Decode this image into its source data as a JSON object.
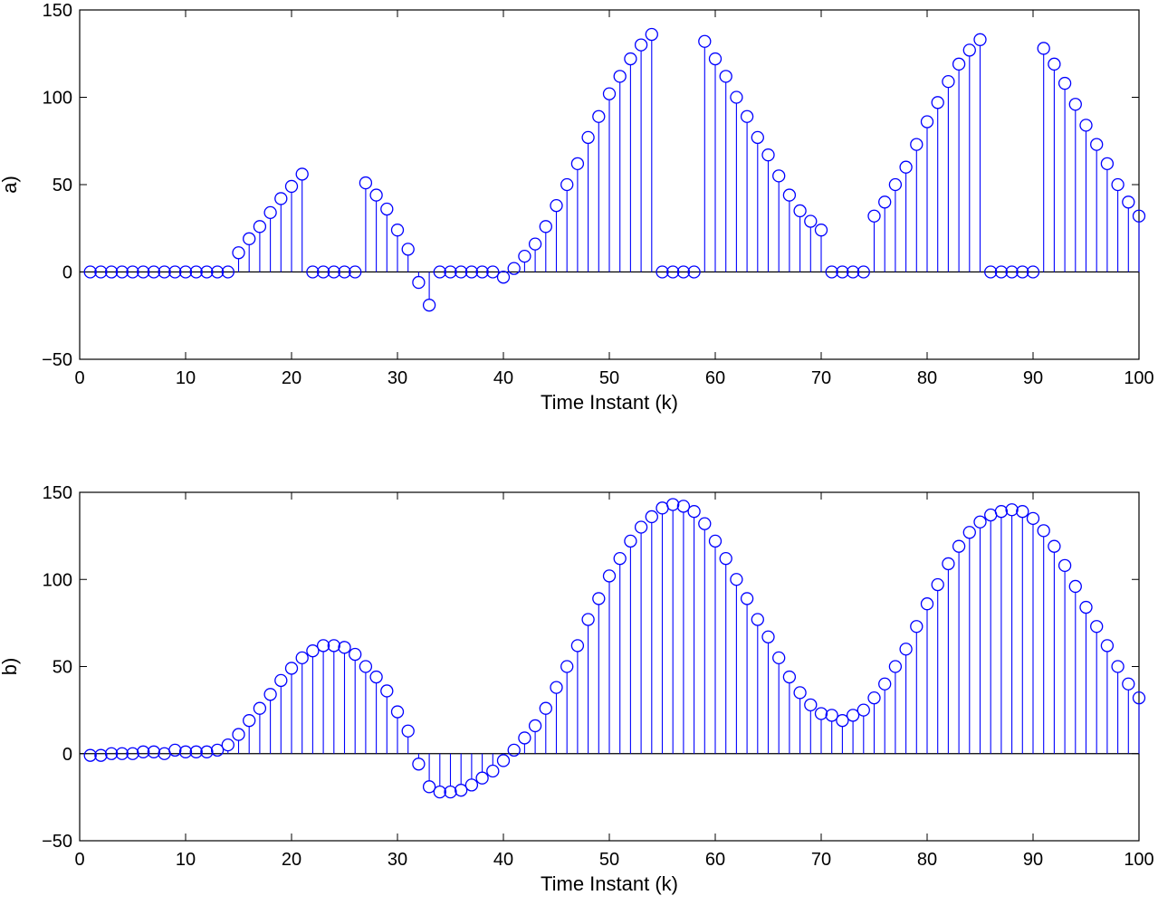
{
  "chart_data": [
    {
      "type": "stem",
      "panel": "top",
      "ylabel": "a)",
      "xlabel": "Time Instant (k)",
      "xlim": [
        0,
        100
      ],
      "ylim": [
        -50,
        150
      ],
      "xticks": [
        "0",
        "10",
        "20",
        "30",
        "40",
        "50",
        "60",
        "70",
        "80",
        "90",
        "100"
      ],
      "yticks": [
        "150",
        "100",
        "50",
        "0",
        "−50"
      ],
      "grid": false,
      "legend": "none",
      "marker": "open circle",
      "color": "#0000ff",
      "x": [
        1,
        2,
        3,
        4,
        5,
        6,
        7,
        8,
        9,
        10,
        11,
        12,
        13,
        14,
        15,
        16,
        17,
        18,
        19,
        20,
        21,
        22,
        23,
        24,
        25,
        26,
        27,
        28,
        29,
        30,
        31,
        32,
        33,
        34,
        35,
        36,
        37,
        38,
        39,
        40,
        41,
        42,
        43,
        44,
        45,
        46,
        47,
        48,
        49,
        50,
        51,
        52,
        53,
        54,
        55,
        56,
        57,
        58,
        59,
        60,
        61,
        62,
        63,
        64,
        65,
        66,
        67,
        68,
        69,
        70,
        71,
        72,
        73,
        74,
        75,
        76,
        77,
        78,
        79,
        80,
        81,
        82,
        83,
        84,
        85,
        86,
        87,
        88,
        89,
        90,
        91,
        92,
        93,
        94,
        95,
        96,
        97,
        98,
        99,
        100
      ],
      "y": [
        0,
        0,
        0,
        0,
        0,
        0,
        0,
        0,
        0,
        0,
        0,
        0,
        0,
        0,
        11,
        19,
        26,
        34,
        42,
        49,
        56,
        0,
        0,
        0,
        0,
        0,
        51,
        44,
        36,
        24,
        13,
        -6,
        -19,
        0,
        0,
        0,
        0,
        0,
        0,
        -3,
        2,
        9,
        16,
        26,
        38,
        50,
        62,
        77,
        89,
        102,
        112,
        122,
        130,
        136,
        0,
        0,
        0,
        0,
        132,
        122,
        112,
        100,
        89,
        77,
        67,
        55,
        44,
        35,
        29,
        24,
        0,
        0,
        0,
        0,
        32,
        40,
        50,
        60,
        73,
        86,
        97,
        109,
        119,
        127,
        133,
        0,
        0,
        0,
        0,
        0,
        128,
        119,
        108,
        96,
        84,
        73,
        62,
        50,
        40,
        32
      ]
    },
    {
      "type": "stem",
      "panel": "bottom",
      "ylabel": "b)",
      "xlabel": "Time Instant (k)",
      "xlim": [
        0,
        100
      ],
      "ylim": [
        -50,
        150
      ],
      "xticks": [
        "0",
        "10",
        "20",
        "30",
        "40",
        "50",
        "60",
        "70",
        "80",
        "90",
        "100"
      ],
      "yticks": [
        "150",
        "100",
        "50",
        "0",
        "−50"
      ],
      "grid": false,
      "legend": "none",
      "marker": "open circle",
      "color": "#0000ff",
      "x": [
        1,
        2,
        3,
        4,
        5,
        6,
        7,
        8,
        9,
        10,
        11,
        12,
        13,
        14,
        15,
        16,
        17,
        18,
        19,
        20,
        21,
        22,
        23,
        24,
        25,
        26,
        27,
        28,
        29,
        30,
        31,
        32,
        33,
        34,
        35,
        36,
        37,
        38,
        39,
        40,
        41,
        42,
        43,
        44,
        45,
        46,
        47,
        48,
        49,
        50,
        51,
        52,
        53,
        54,
        55,
        56,
        57,
        58,
        59,
        60,
        61,
        62,
        63,
        64,
        65,
        66,
        67,
        68,
        69,
        70,
        71,
        72,
        73,
        74,
        75,
        76,
        77,
        78,
        79,
        80,
        81,
        82,
        83,
        84,
        85,
        86,
        87,
        88,
        89,
        90,
        91,
        92,
        93,
        94,
        95,
        96,
        97,
        98,
        99,
        100
      ],
      "y": [
        -1,
        -1,
        0,
        0,
        0,
        1,
        1,
        0,
        2,
        1,
        1,
        1,
        2,
        5,
        11,
        19,
        26,
        34,
        42,
        49,
        55,
        59,
        62,
        62,
        61,
        57,
        50,
        44,
        36,
        24,
        13,
        -6,
        -19,
        -22,
        -22,
        -21,
        -18,
        -14,
        -10,
        -4,
        2,
        9,
        16,
        26,
        38,
        50,
        62,
        77,
        89,
        102,
        112,
        122,
        130,
        136,
        141,
        143,
        142,
        139,
        132,
        122,
        112,
        100,
        89,
        77,
        67,
        55,
        44,
        35,
        28,
        23,
        22,
        19,
        22,
        25,
        32,
        40,
        50,
        60,
        73,
        86,
        97,
        109,
        119,
        127,
        133,
        137,
        139,
        140,
        139,
        135,
        128,
        119,
        108,
        96,
        84,
        73,
        62,
        50,
        40,
        32
      ]
    }
  ]
}
